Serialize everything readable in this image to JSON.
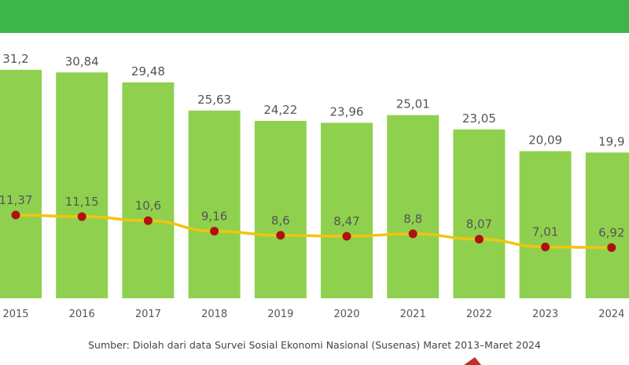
{
  "colors": {
    "top_band": "#3db54a",
    "bar": "#8fd14f",
    "line": "#f2c40f",
    "marker": "#b01010",
    "text": "#555555"
  },
  "source_note": "Sumber: Diolah dari data Survei Sosial Ekonomi Nasional (Susenas) Maret 2013–Maret 2024",
  "chart_data": {
    "type": "bar",
    "categories": [
      "2015",
      "2016",
      "2017",
      "2018",
      "2019",
      "2020",
      "2021",
      "2022",
      "2023",
      "2024"
    ],
    "series": [
      {
        "type": "bar",
        "values": [
          31.2,
          30.84,
          29.48,
          25.63,
          24.22,
          23.96,
          25.01,
          23.05,
          20.09,
          19.9
        ],
        "labels": [
          "31,2",
          "30,84",
          "29,48",
          "25,63",
          "24,22",
          "23,96",
          "25,01",
          "23,05",
          "20,09",
          "19,9"
        ]
      },
      {
        "type": "line",
        "values": [
          11.37,
          11.15,
          10.6,
          9.16,
          8.6,
          8.47,
          8.8,
          8.07,
          7.01,
          6.92
        ],
        "labels": [
          "11,37",
          "11,15",
          "10,6",
          "9,16",
          "8,6",
          "8,47",
          "8,8",
          "8,07",
          "7,01",
          "6,92"
        ]
      }
    ],
    "xlabel": "",
    "ylabel": "",
    "grid": false,
    "legend": "none"
  }
}
